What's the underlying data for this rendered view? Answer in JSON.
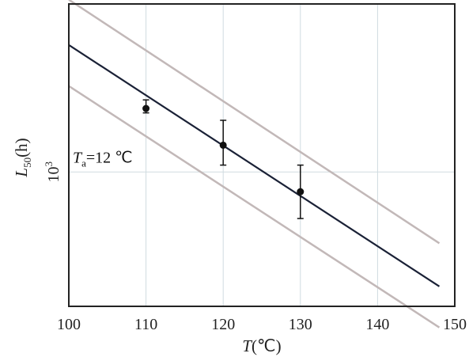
{
  "chart_data": {
    "type": "line",
    "xlabel": {
      "main": "T",
      "unit": "(℃)"
    },
    "ylabel": {
      "main": "L",
      "sub": "50",
      "unit": "(h)"
    },
    "xlim": [
      100,
      150
    ],
    "xticks": [
      100,
      110,
      120,
      130,
      140,
      150
    ],
    "xtick_labels": [
      "100",
      "110",
      "120",
      "130",
      "140",
      "150"
    ],
    "yscale": "log",
    "ylim": [
      680,
      1620
    ],
    "ytick_label": {
      "value": 1000,
      "base": "10",
      "exp": "3"
    },
    "grid": true,
    "annotation": {
      "main": "T",
      "sub": "a",
      "text": "=12 ℃"
    },
    "fit_line": {
      "x": [
        100,
        148
      ],
      "y": [
        1440,
        720
      ]
    },
    "upper_band": {
      "x": [
        100,
        148
      ],
      "y": [
        1640,
        815
      ]
    },
    "lower_band": {
      "x": [
        100,
        148
      ],
      "y": [
        1280,
        640
      ]
    },
    "points": [
      {
        "x": 110,
        "y": 1200,
        "err_low": 1185,
        "err_high": 1230
      },
      {
        "x": 120,
        "y": 1080,
        "err_low": 1020,
        "err_high": 1160
      },
      {
        "x": 130,
        "y": 945,
        "err_low": 875,
        "err_high": 1020
      }
    ],
    "colors": {
      "fit": "#1a2136",
      "band": "#c2b8b8",
      "grid": "#d0dbe0",
      "axis": "#222222",
      "point": "#111111"
    }
  }
}
